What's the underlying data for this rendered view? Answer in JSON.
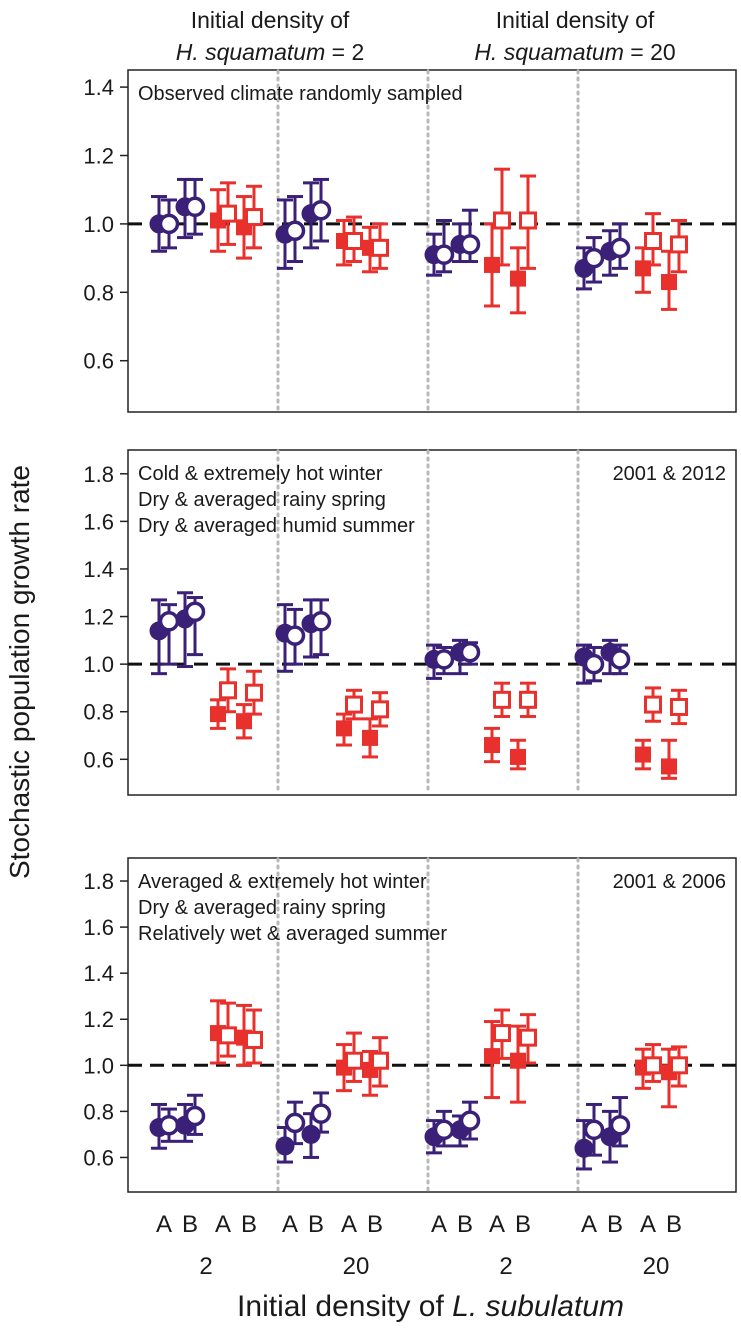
{
  "headers": [
    {
      "line1": "Initial density of",
      "species": "H. squamatum",
      "suffix": " = 2"
    },
    {
      "line1": "Initial density of",
      "species": "H. squamatum",
      "suffix": " = 20"
    }
  ],
  "y_axis_label": "Stochastic population growth rate",
  "x_axis_title": {
    "prefix": "Initial density of ",
    "species": "L. subulatum"
  },
  "x_treatment_labels": [
    "A",
    "B",
    "A",
    "B",
    "A",
    "B",
    "A",
    "B",
    "A",
    "B",
    "A",
    "B",
    "A",
    "B",
    "A",
    "B"
  ],
  "x_group_labels": [
    "2",
    "20",
    "2",
    "20"
  ],
  "colors": {
    "purple": "#3a2077",
    "red": "#e8302c",
    "dashed": "#111111",
    "divider": "#b8b8b8"
  },
  "chart_data": [
    {
      "type": "scatter",
      "title": "Observed climate randomly sampled",
      "annotation_lines": [
        "Observed climate randomly sampled"
      ],
      "right_label": "",
      "ylim": [
        0.45,
        1.45
      ],
      "yticks": [
        0.6,
        0.8,
        1.0,
        1.2,
        1.4
      ],
      "ytick_labels": [
        "0.6",
        "0.8",
        "1.0",
        "1.2",
        "1.4"
      ],
      "reference_line": 1.0,
      "groups": [
        {
          "treatment": "A",
          "filled": {
            "mean": 1.0,
            "lo": 0.92,
            "hi": 1.08
          },
          "open": {
            "mean": 1.0,
            "lo": 0.93,
            "hi": 1.07
          }
        },
        {
          "treatment": "B",
          "filled": {
            "mean": 1.05,
            "lo": 0.96,
            "hi": 1.13
          },
          "open": {
            "mean": 1.05,
            "lo": 0.97,
            "hi": 1.13
          }
        },
        {
          "treatment": "A",
          "filled": {
            "mean": 1.01,
            "lo": 0.92,
            "hi": 1.1
          },
          "open": {
            "mean": 1.03,
            "lo": 0.94,
            "hi": 1.12
          }
        },
        {
          "treatment": "B",
          "filled": {
            "mean": 0.99,
            "lo": 0.9,
            "hi": 1.08
          },
          "open": {
            "mean": 1.02,
            "lo": 0.93,
            "hi": 1.11
          }
        },
        {
          "treatment": "A",
          "filled": {
            "mean": 0.97,
            "lo": 0.87,
            "hi": 1.07
          },
          "open": {
            "mean": 0.98,
            "lo": 0.89,
            "hi": 1.08
          }
        },
        {
          "treatment": "B",
          "filled": {
            "mean": 1.03,
            "lo": 0.93,
            "hi": 1.12
          },
          "open": {
            "mean": 1.04,
            "lo": 0.95,
            "hi": 1.13
          }
        },
        {
          "treatment": "A",
          "filled": {
            "mean": 0.95,
            "lo": 0.88,
            "hi": 1.01
          },
          "open": {
            "mean": 0.95,
            "lo": 0.89,
            "hi": 1.02
          }
        },
        {
          "treatment": "B",
          "filled": {
            "mean": 0.93,
            "lo": 0.86,
            "hi": 0.99
          },
          "open": {
            "mean": 0.93,
            "lo": 0.87,
            "hi": 1.0
          }
        },
        {
          "treatment": "A",
          "filled": {
            "mean": 0.91,
            "lo": 0.85,
            "hi": 0.97
          },
          "open": {
            "mean": 0.91,
            "lo": 0.86,
            "hi": 1.01
          }
        },
        {
          "treatment": "B",
          "filled": {
            "mean": 0.94,
            "lo": 0.89,
            "hi": 1.0
          },
          "open": {
            "mean": 0.94,
            "lo": 0.89,
            "hi": 1.04
          }
        },
        {
          "treatment": "A",
          "filled": {
            "mean": 0.88,
            "lo": 0.76,
            "hi": 1.0
          },
          "open": {
            "mean": 1.01,
            "lo": 0.88,
            "hi": 1.16
          }
        },
        {
          "treatment": "B",
          "filled": {
            "mean": 0.84,
            "lo": 0.74,
            "hi": 0.93
          },
          "open": {
            "mean": 1.01,
            "lo": 0.87,
            "hi": 1.14
          }
        },
        {
          "treatment": "A",
          "filled": {
            "mean": 0.87,
            "lo": 0.81,
            "hi": 0.93
          },
          "open": {
            "mean": 0.9,
            "lo": 0.83,
            "hi": 0.96
          }
        },
        {
          "treatment": "B",
          "filled": {
            "mean": 0.92,
            "lo": 0.85,
            "hi": 0.98
          },
          "open": {
            "mean": 0.93,
            "lo": 0.87,
            "hi": 1.0
          }
        },
        {
          "treatment": "A",
          "filled": {
            "mean": 0.87,
            "lo": 0.8,
            "hi": 0.93
          },
          "open": {
            "mean": 0.95,
            "lo": 0.88,
            "hi": 1.03
          }
        },
        {
          "treatment": "B",
          "filled": {
            "mean": 0.83,
            "lo": 0.75,
            "hi": 0.92
          },
          "open": {
            "mean": 0.94,
            "lo": 0.86,
            "hi": 1.01
          }
        }
      ]
    },
    {
      "type": "scatter",
      "title": "Cold & extremely hot winter",
      "annotation_lines": [
        "Cold & extremely hot winter",
        "Dry & averaged rainy spring",
        "Dry & averaged humid summer"
      ],
      "right_label": "2001 & 2012",
      "ylim": [
        0.45,
        1.9
      ],
      "yticks": [
        0.6,
        0.8,
        1.0,
        1.2,
        1.4,
        1.6,
        1.8
      ],
      "ytick_labels": [
        "0.6",
        "0.8",
        "1.0",
        "1.2",
        "1.4",
        "1.6",
        "1.8"
      ],
      "reference_line": 1.0,
      "groups": [
        {
          "treatment": "A",
          "filled": {
            "mean": 1.14,
            "lo": 0.96,
            "hi": 1.27
          },
          "open": {
            "mean": 1.18,
            "lo": 1.0,
            "hi": 1.25
          }
        },
        {
          "treatment": "B",
          "filled": {
            "mean": 1.19,
            "lo": 0.99,
            "hi": 1.3
          },
          "open": {
            "mean": 1.22,
            "lo": 1.04,
            "hi": 1.28
          }
        },
        {
          "treatment": "A",
          "filled": {
            "mean": 0.79,
            "lo": 0.73,
            "hi": 0.85
          },
          "open": {
            "mean": 0.89,
            "lo": 0.8,
            "hi": 0.98
          }
        },
        {
          "treatment": "B",
          "filled": {
            "mean": 0.76,
            "lo": 0.69,
            "hi": 0.83
          },
          "open": {
            "mean": 0.88,
            "lo": 0.79,
            "hi": 0.97
          }
        },
        {
          "treatment": "A",
          "filled": {
            "mean": 1.13,
            "lo": 0.97,
            "hi": 1.25
          },
          "open": {
            "mean": 1.12,
            "lo": 1.0,
            "hi": 1.23
          }
        },
        {
          "treatment": "B",
          "filled": {
            "mean": 1.17,
            "lo": 1.03,
            "hi": 1.27
          },
          "open": {
            "mean": 1.18,
            "lo": 1.04,
            "hi": 1.27
          }
        },
        {
          "treatment": "A",
          "filled": {
            "mean": 0.73,
            "lo": 0.66,
            "hi": 0.79
          },
          "open": {
            "mean": 0.83,
            "lo": 0.77,
            "hi": 0.89
          }
        },
        {
          "treatment": "B",
          "filled": {
            "mean": 0.69,
            "lo": 0.61,
            "hi": 0.77
          },
          "open": {
            "mean": 0.81,
            "lo": 0.74,
            "hi": 0.88
          }
        },
        {
          "treatment": "A",
          "filled": {
            "mean": 1.02,
            "lo": 0.94,
            "hi": 1.08
          },
          "open": {
            "mean": 1.02,
            "lo": 0.96,
            "hi": 1.07
          }
        },
        {
          "treatment": "B",
          "filled": {
            "mean": 1.05,
            "lo": 0.96,
            "hi": 1.1
          },
          "open": {
            "mean": 1.05,
            "lo": 1.0,
            "hi": 1.09
          }
        },
        {
          "treatment": "A",
          "filled": {
            "mean": 0.66,
            "lo": 0.59,
            "hi": 0.73
          },
          "open": {
            "mean": 0.85,
            "lo": 0.78,
            "hi": 0.92
          }
        },
        {
          "treatment": "B",
          "filled": {
            "mean": 0.61,
            "lo": 0.56,
            "hi": 0.68
          },
          "open": {
            "mean": 0.85,
            "lo": 0.78,
            "hi": 0.92
          }
        },
        {
          "treatment": "A",
          "filled": {
            "mean": 1.03,
            "lo": 0.92,
            "hi": 1.08
          },
          "open": {
            "mean": 1.0,
            "lo": 0.93,
            "hi": 1.07
          }
        },
        {
          "treatment": "B",
          "filled": {
            "mean": 1.05,
            "lo": 0.96,
            "hi": 1.1
          },
          "open": {
            "mean": 1.02,
            "lo": 0.96,
            "hi": 1.08
          }
        },
        {
          "treatment": "A",
          "filled": {
            "mean": 0.62,
            "lo": 0.56,
            "hi": 0.68
          },
          "open": {
            "mean": 0.83,
            "lo": 0.76,
            "hi": 0.9
          }
        },
        {
          "treatment": "B",
          "filled": {
            "mean": 0.57,
            "lo": 0.52,
            "hi": 0.68
          },
          "open": {
            "mean": 0.82,
            "lo": 0.75,
            "hi": 0.89
          }
        }
      ]
    },
    {
      "type": "scatter",
      "title": "Averaged & extremely hot winter",
      "annotation_lines": [
        "Averaged & extremely hot winter",
        "Dry & averaged rainy spring",
        "Relatively wet & averaged summer"
      ],
      "right_label": "2001 & 2006",
      "ylim": [
        0.45,
        1.9
      ],
      "yticks": [
        0.6,
        0.8,
        1.0,
        1.2,
        1.4,
        1.6,
        1.8
      ],
      "ytick_labels": [
        "0.6",
        "0.8",
        "1.0",
        "1.2",
        "1.4",
        "1.6",
        "1.8"
      ],
      "reference_line": 1.0,
      "groups": [
        {
          "treatment": "A",
          "filled": {
            "mean": 0.73,
            "lo": 0.64,
            "hi": 0.83
          },
          "open": {
            "mean": 0.74,
            "lo": 0.67,
            "hi": 0.81
          }
        },
        {
          "treatment": "B",
          "filled": {
            "mean": 0.74,
            "lo": 0.67,
            "hi": 0.83
          },
          "open": {
            "mean": 0.78,
            "lo": 0.7,
            "hi": 0.87
          }
        },
        {
          "treatment": "A",
          "filled": {
            "mean": 1.14,
            "lo": 1.01,
            "hi": 1.28
          },
          "open": {
            "mean": 1.13,
            "lo": 1.04,
            "hi": 1.27
          }
        },
        {
          "treatment": "B",
          "filled": {
            "mean": 1.12,
            "lo": 1.0,
            "hi": 1.26
          },
          "open": {
            "mean": 1.11,
            "lo": 1.01,
            "hi": 1.24
          }
        },
        {
          "treatment": "A",
          "filled": {
            "mean": 0.65,
            "lo": 0.58,
            "hi": 0.73
          },
          "open": {
            "mean": 0.75,
            "lo": 0.66,
            "hi": 0.84
          }
        },
        {
          "treatment": "B",
          "filled": {
            "mean": 0.7,
            "lo": 0.6,
            "hi": 0.79
          },
          "open": {
            "mean": 0.79,
            "lo": 0.71,
            "hi": 0.88
          }
        },
        {
          "treatment": "A",
          "filled": {
            "mean": 0.99,
            "lo": 0.89,
            "hi": 1.09
          },
          "open": {
            "mean": 1.02,
            "lo": 0.93,
            "hi": 1.14
          }
        },
        {
          "treatment": "B",
          "filled": {
            "mean": 0.98,
            "lo": 0.87,
            "hi": 1.06
          },
          "open": {
            "mean": 1.02,
            "lo": 0.91,
            "hi": 1.12
          }
        },
        {
          "treatment": "A",
          "filled": {
            "mean": 0.69,
            "lo": 0.62,
            "hi": 0.76
          },
          "open": {
            "mean": 0.72,
            "lo": 0.65,
            "hi": 0.8
          }
        },
        {
          "treatment": "B",
          "filled": {
            "mean": 0.72,
            "lo": 0.65,
            "hi": 0.78
          },
          "open": {
            "mean": 0.76,
            "lo": 0.68,
            "hi": 0.84
          }
        },
        {
          "treatment": "A",
          "filled": {
            "mean": 1.04,
            "lo": 0.86,
            "hi": 1.19
          },
          "open": {
            "mean": 1.14,
            "lo": 1.03,
            "hi": 1.24
          }
        },
        {
          "treatment": "B",
          "filled": {
            "mean": 1.02,
            "lo": 0.84,
            "hi": 1.17
          },
          "open": {
            "mean": 1.12,
            "lo": 1.01,
            "hi": 1.22
          }
        },
        {
          "treatment": "A",
          "filled": {
            "mean": 0.64,
            "lo": 0.55,
            "hi": 0.76
          },
          "open": {
            "mean": 0.72,
            "lo": 0.61,
            "hi": 0.83
          }
        },
        {
          "treatment": "B",
          "filled": {
            "mean": 0.69,
            "lo": 0.58,
            "hi": 0.8
          },
          "open": {
            "mean": 0.74,
            "lo": 0.65,
            "hi": 0.86
          }
        },
        {
          "treatment": "A",
          "filled": {
            "mean": 0.99,
            "lo": 0.9,
            "hi": 1.07
          },
          "open": {
            "mean": 1.0,
            "lo": 0.93,
            "hi": 1.09
          }
        },
        {
          "treatment": "B",
          "filled": {
            "mean": 0.97,
            "lo": 0.82,
            "hi": 1.07
          },
          "open": {
            "mean": 1.0,
            "lo": 0.91,
            "hi": 1.08
          }
        }
      ]
    }
  ]
}
